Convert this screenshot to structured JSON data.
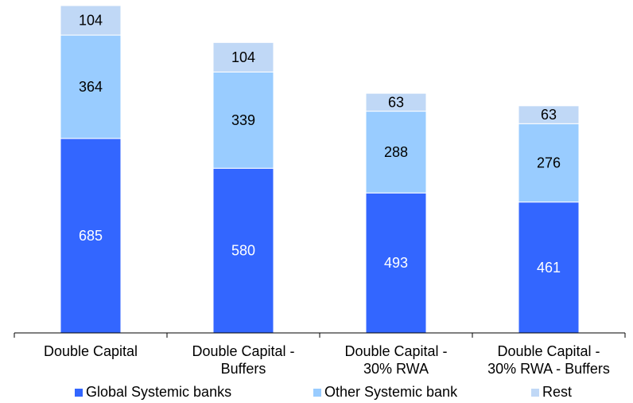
{
  "chart_data": {
    "type": "bar",
    "stacked": true,
    "categories": [
      [
        "Double Capital"
      ],
      [
        "Double Capital -",
        "Buffers"
      ],
      [
        "Double Capital -",
        "30% RWA"
      ],
      [
        "Double Capital -",
        "30% RWA - Buffers"
      ]
    ],
    "series": [
      {
        "name": "Global Systemic banks",
        "values": [
          685,
          580,
          493,
          461
        ],
        "color": "#3366ff",
        "label_color": "#ffffff"
      },
      {
        "name": "Other Systemic bank",
        "values": [
          364,
          339,
          288,
          276
        ],
        "color": "#99ccff",
        "label_color": "#000000"
      },
      {
        "name": "Rest",
        "values": [
          104,
          104,
          63,
          63
        ],
        "color": "#c0d8f6",
        "label_color": "#000000"
      }
    ],
    "title": "",
    "xlabel": "",
    "ylabel": "",
    "ylim": [
      0,
      1153
    ],
    "grid": false,
    "legend_position": "bottom"
  }
}
